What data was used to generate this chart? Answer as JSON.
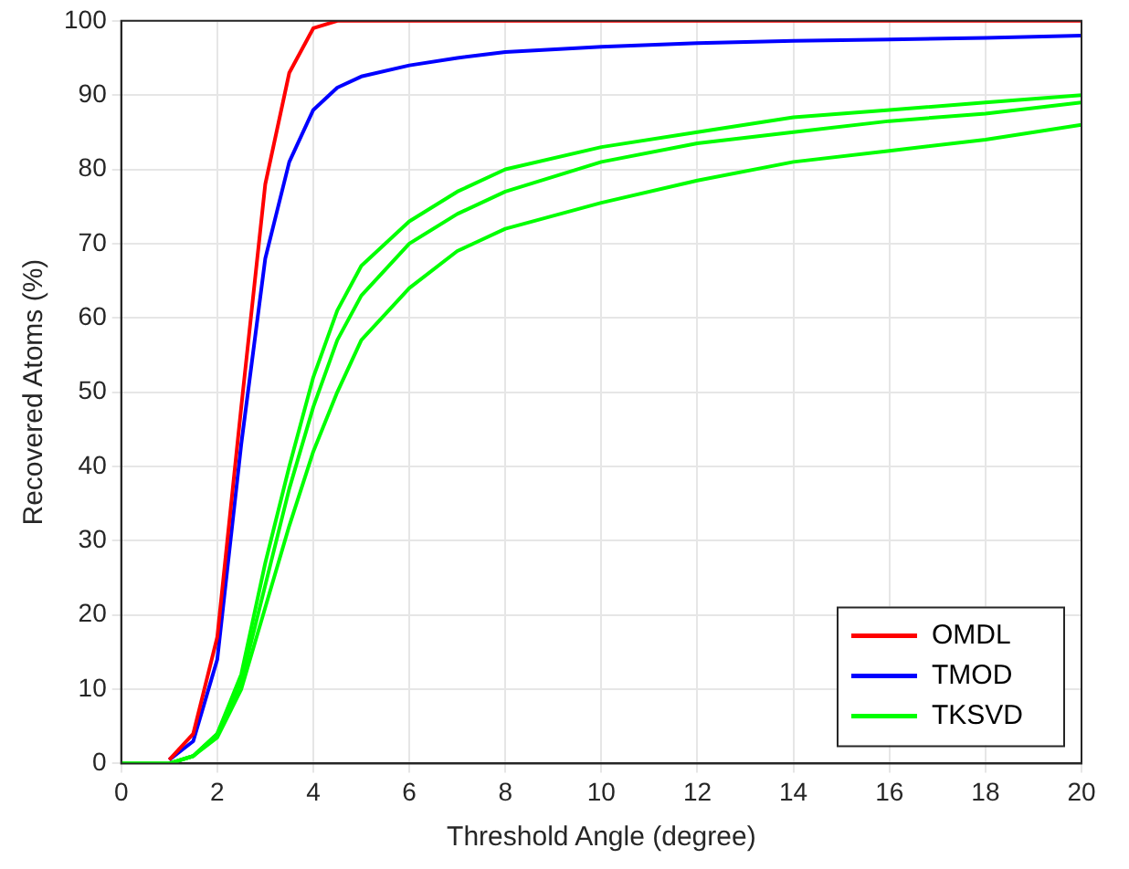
{
  "chart_data": {
    "type": "line",
    "xlabel": "Threshold Angle (degree)",
    "ylabel": "Recovered Atoms (%)",
    "x": [
      0,
      0.5,
      1,
      1.5,
      2,
      2.5,
      3,
      3.5,
      4,
      4.5,
      5,
      6,
      7,
      8,
      10,
      12,
      14,
      16,
      18,
      20
    ],
    "xlim": [
      0,
      20
    ],
    "xticks": [
      0,
      2,
      4,
      6,
      8,
      10,
      12,
      14,
      16,
      18,
      20
    ],
    "ylim": [
      0,
      100
    ],
    "yticks": [
      0,
      10,
      20,
      30,
      40,
      50,
      60,
      70,
      80,
      90,
      100
    ],
    "grid": true,
    "legend": "bottom right",
    "marker": "none",
    "line_style": "solid",
    "series": [
      {
        "name": "OMDL",
        "color": "#ff0000",
        "values": [
          null,
          null,
          0.5,
          4,
          17,
          48,
          78,
          93,
          99,
          100,
          100,
          100,
          100,
          100,
          100,
          100,
          100,
          100,
          100,
          100
        ]
      },
      {
        "name": "TMOD",
        "color": "#0000ff",
        "values": [
          null,
          null,
          0.5,
          3,
          14,
          43,
          68,
          81,
          88,
          91,
          92.5,
          94,
          95,
          95.8,
          96.5,
          97,
          97.3,
          97.5,
          97.7,
          98
        ]
      },
      {
        "name": "TKSVD",
        "color": "#00ff00",
        "values": [
          0,
          0,
          0,
          1,
          4,
          12,
          27,
          40,
          52,
          61,
          67,
          73,
          77,
          80,
          83,
          85,
          87,
          88,
          89,
          90
        ]
      },
      {
        "color": "#00ff00",
        "values": [
          0,
          0,
          0,
          1,
          4,
          11,
          24,
          37,
          48,
          57,
          63,
          70,
          74,
          77,
          81,
          83.5,
          85,
          86.5,
          87.5,
          89
        ]
      },
      {
        "color": "#00ff00",
        "values": [
          0,
          0,
          0,
          1,
          3.5,
          10,
          21,
          32,
          42,
          50,
          57,
          64,
          69,
          72,
          75.5,
          78.5,
          81,
          82.5,
          84,
          86
        ]
      }
    ]
  }
}
